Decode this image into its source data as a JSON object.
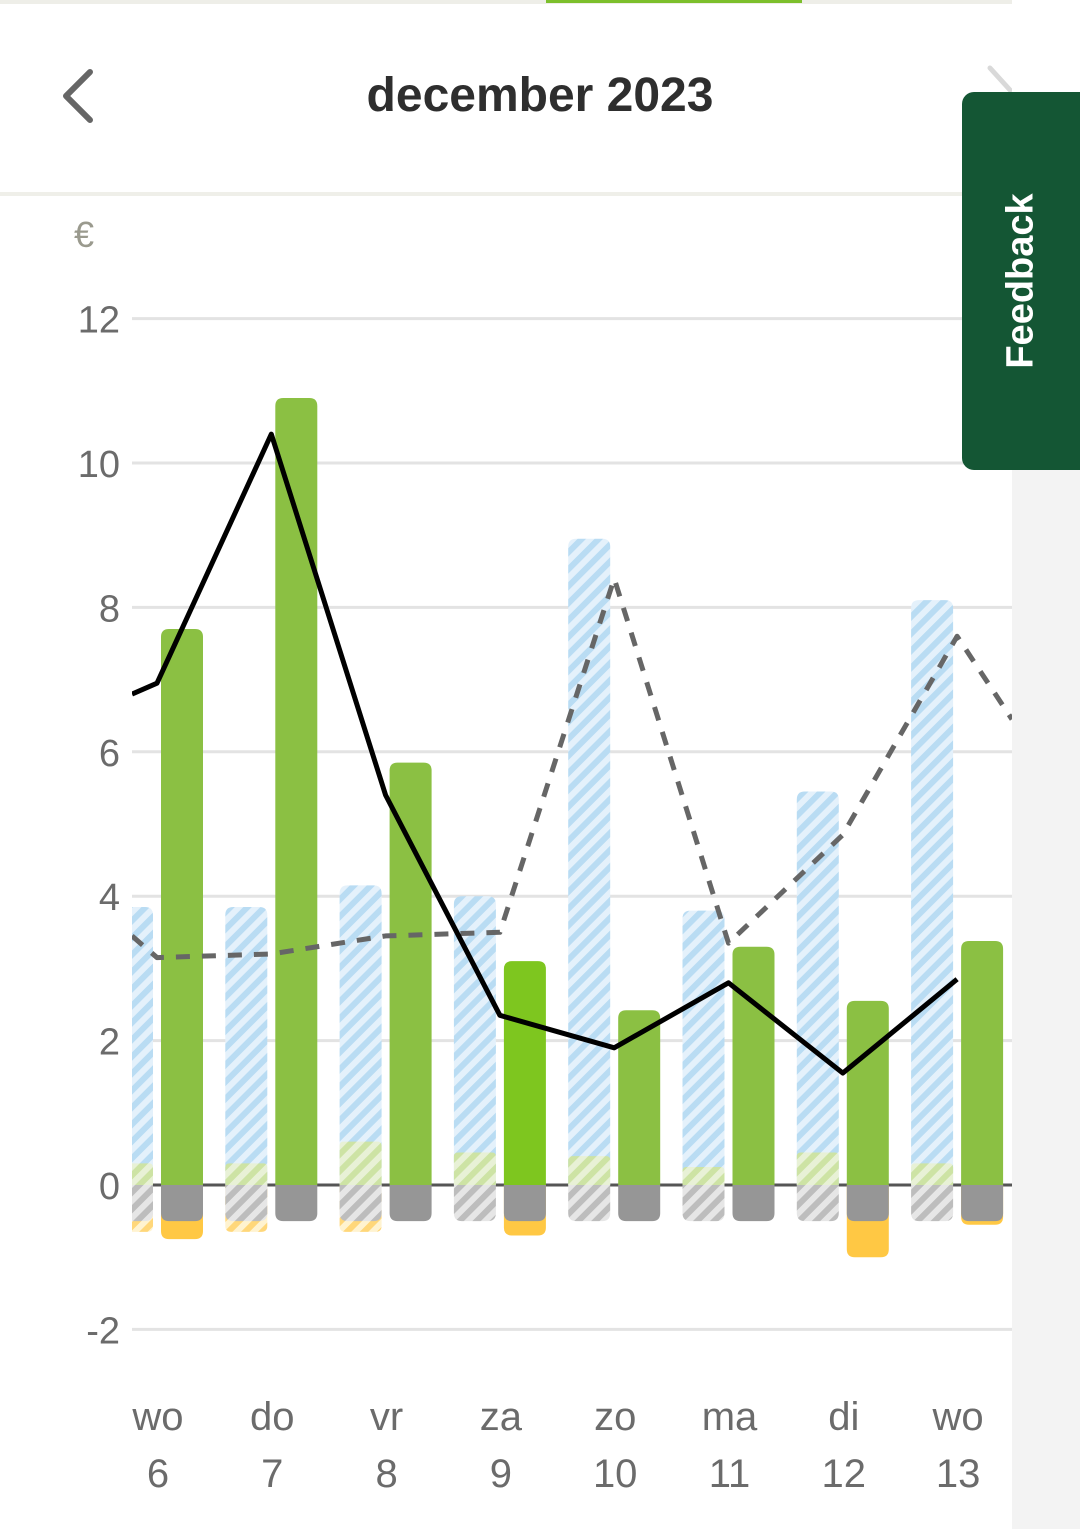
{
  "header": {
    "title": "december 2023",
    "prev_icon": "chevron-left-icon",
    "next_icon": "chevron-right-icon"
  },
  "feedback": {
    "label": "Feedback"
  },
  "colors": {
    "actual_bar": "#8bc043",
    "actual_bar_today": "#7ec61f",
    "forecast_bar": "#b9dcf3",
    "negative_bar": "#969696",
    "small_positive": "#cde3a4",
    "return_bar": "#ffc844",
    "line_actual": "#000000",
    "line_forecast": "#666666",
    "grid": "#e3e3e3",
    "axis_text": "#6b6b6b"
  },
  "chart_data": {
    "type": "bar",
    "unit_label": "€",
    "ylim": [
      -2.4,
      12.8
    ],
    "yticks": [
      "12",
      "10",
      "8",
      "6",
      "4",
      "2",
      "0",
      "-2"
    ],
    "ytick_values": [
      12,
      10,
      8,
      6,
      4,
      2,
      0,
      -2
    ],
    "categories": [
      {
        "day": "wo",
        "date": "6"
      },
      {
        "day": "do",
        "date": "7"
      },
      {
        "day": "vr",
        "date": "8"
      },
      {
        "day": "za",
        "date": "9"
      },
      {
        "day": "zo",
        "date": "10"
      },
      {
        "day": "ma",
        "date": "11"
      },
      {
        "day": "di",
        "date": "12"
      },
      {
        "day": "wo",
        "date": "13"
      }
    ],
    "series": [
      {
        "values": [
          3.85,
          3.85,
          4.15,
          4.0,
          8.95,
          3.8,
          5.45,
          8.1
        ],
        "low_values": [
          0.3,
          0.3,
          0.6,
          0.45,
          0.4,
          0.25,
          0.45,
          0.3
        ],
        "negative_values": [
          -0.5,
          -0.5,
          -0.5,
          -0.5,
          -0.5,
          -0.5,
          -0.5,
          -0.5
        ],
        "return_values": [
          -0.65,
          -0.65,
          -0.65,
          null,
          null,
          null,
          null,
          null
        ]
      },
      {
        "values": [
          7.7,
          10.9,
          5.85,
          3.1,
          2.42,
          3.3,
          2.55,
          3.38
        ],
        "negative_values": [
          -0.5,
          -0.5,
          -0.5,
          -0.5,
          -0.5,
          -0.5,
          -0.5,
          -0.5
        ],
        "return_values": [
          -0.75,
          null,
          null,
          -0.7,
          null,
          null,
          -1.0,
          -0.55
        ],
        "highlight_index": 3
      },
      {
        "style": "solid",
        "values": [
          6.95,
          10.4,
          5.4,
          2.35,
          1.9,
          2.8,
          1.55,
          2.85
        ],
        "lead_in": 6.8
      },
      {
        "style": "dashed",
        "values": [
          3.15,
          3.2,
          3.45,
          3.5,
          8.4,
          3.35,
          4.85,
          7.6
        ],
        "lead_in": 3.45,
        "lead_out": 6.45
      }
    ]
  }
}
